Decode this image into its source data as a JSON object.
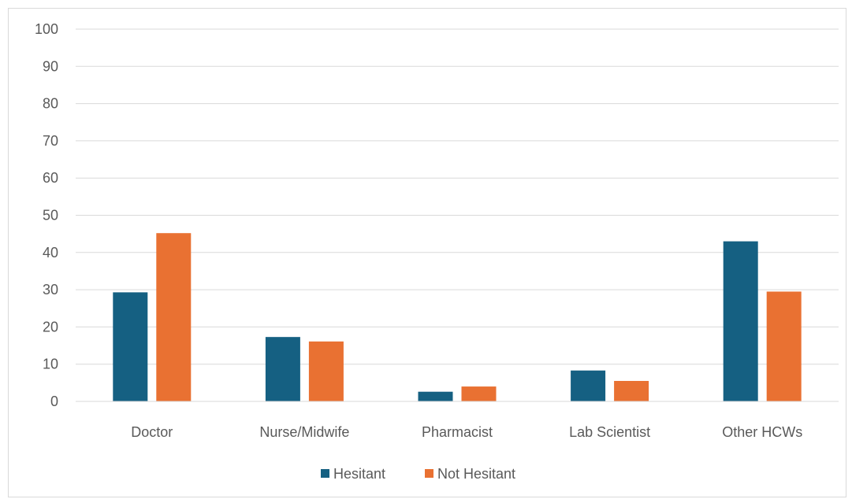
{
  "chart_data": {
    "type": "bar",
    "categories": [
      "Doctor",
      "Nurse/Midwife",
      "Pharmacist",
      "Lab Scientist",
      "Other HCWs"
    ],
    "series": [
      {
        "name": "Hesitant",
        "color": "#156082",
        "values": [
          29.3,
          17.3,
          2.6,
          8.3,
          43.0
        ]
      },
      {
        "name": "Not Hesitant",
        "color": "#E97132",
        "values": [
          45.2,
          16.1,
          4.0,
          5.5,
          29.5
        ]
      }
    ],
    "yticks": [
      0,
      10,
      20,
      30,
      40,
      50,
      60,
      70,
      80,
      90,
      100
    ],
    "ylim": [
      0,
      100
    ],
    "grid": true,
    "legend_position": "bottom",
    "title": "",
    "xlabel": "",
    "ylabel": ""
  }
}
